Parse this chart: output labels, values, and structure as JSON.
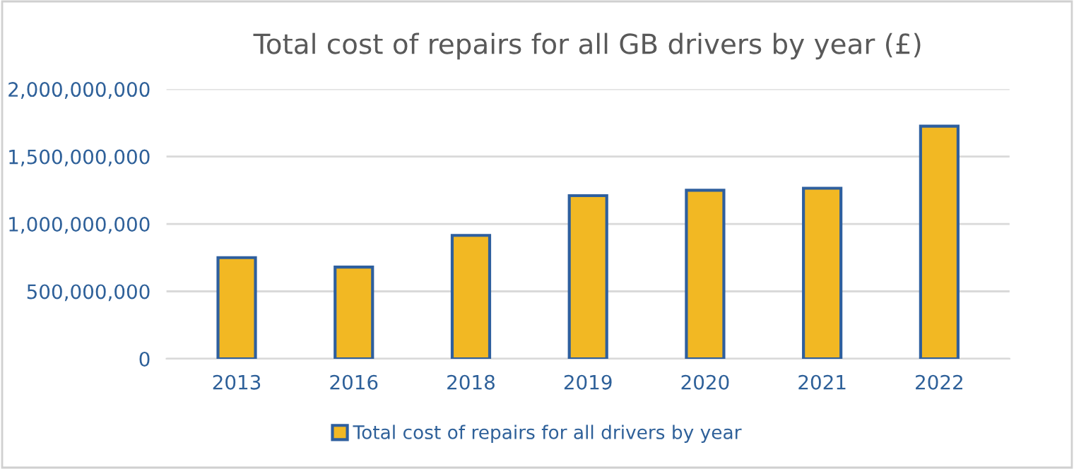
{
  "chart_data": {
    "type": "bar",
    "title": "Total cost of repairs for all GB drivers by year (£)",
    "categories": [
      "2013",
      "2016",
      "2018",
      "2019",
      "2020",
      "2021",
      "2022"
    ],
    "series": [
      {
        "name": "Total cost of repairs for all drivers by year",
        "color": "#f2b823",
        "values": [
          750000000,
          680000000,
          915000000,
          1210000000,
          1250000000,
          1265000000,
          1725000000
        ]
      }
    ],
    "ylim": [
      0,
      2000000000
    ],
    "yticks": [
      {
        "value": 0,
        "label": "0"
      },
      {
        "value": 500000000,
        "label": "500,000,000"
      },
      {
        "value": 1000000000,
        "label": "1,000,000,000"
      },
      {
        "value": 1500000000,
        "label": "1,500,000,000"
      },
      {
        "value": 2000000000,
        "label": "2,000,000,000"
      }
    ],
    "grid": "y",
    "legend": "bottom"
  }
}
